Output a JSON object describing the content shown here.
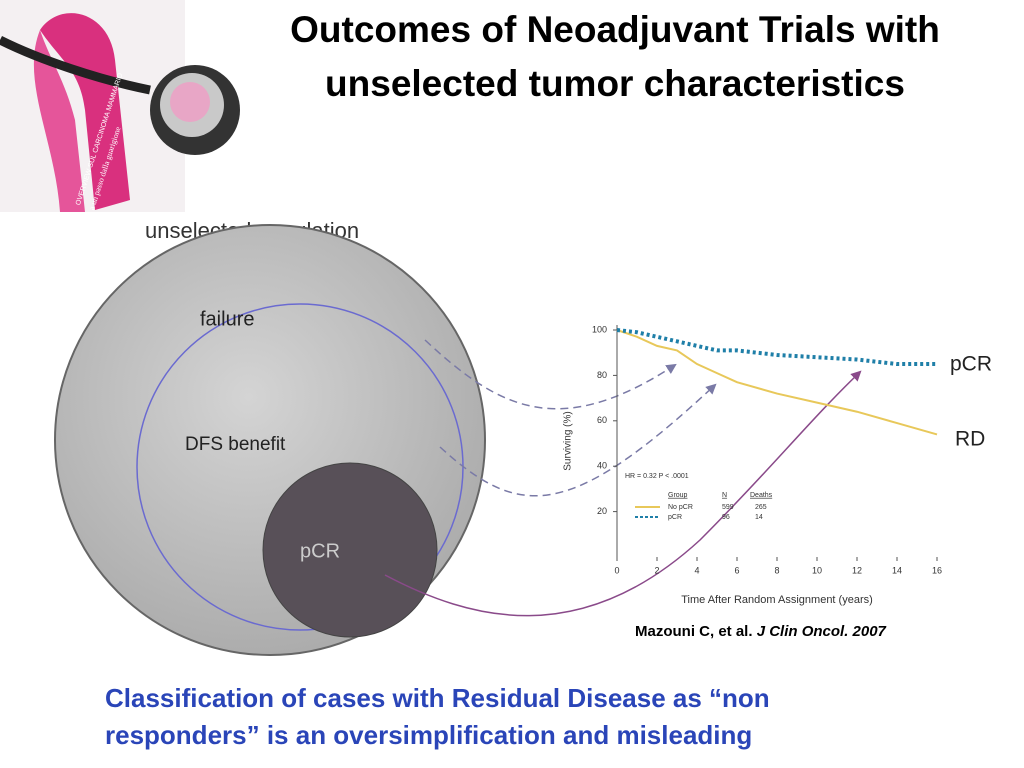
{
  "header": {
    "title_lines": [
      "Outcomes of Neoadjuvant Trials with",
      "unselected tumor characteristics"
    ]
  },
  "logo": {
    "ribbon_text": "OVERVIEW SUL CARCINOMA MAMMARIO",
    "tagline": "a un passo dalla guarigione"
  },
  "diagram": {
    "population": "unselected population",
    "outer": "failure",
    "middle": "DFS benefit",
    "inner": "pCR"
  },
  "chart_data": {
    "type": "line",
    "x_label": "Time After Random Assignment (years)",
    "y_label": "Surviving (%)",
    "x": [
      0,
      1,
      2,
      3,
      4,
      5,
      6,
      8,
      10,
      12,
      14,
      16
    ],
    "series": [
      {
        "name": "No pCR",
        "color": "#e8c85a",
        "n": 599,
        "deaths": 265,
        "values": [
          100,
          97,
          93,
          91,
          85,
          81,
          77,
          72,
          68,
          64,
          59,
          54
        ]
      },
      {
        "name": "pCR",
        "color": "#1f7fa8",
        "n": 96,
        "deaths": 14,
        "values": [
          100,
          99,
          97,
          95,
          93,
          91,
          91,
          89,
          88,
          87,
          85,
          85
        ]
      }
    ],
    "xlim": [
      0,
      16
    ],
    "xticks": [
      0,
      2,
      4,
      6,
      8,
      10,
      12,
      14,
      16
    ],
    "ylim": [
      0,
      100
    ],
    "yticks": [
      20,
      40,
      60,
      80,
      100
    ],
    "legend_headers": [
      "Group",
      "N",
      "Deaths"
    ],
    "stats": "HR = 0.32    P < .0001",
    "annotations": [
      "pCR",
      "RD"
    ]
  },
  "citation": {
    "authors": "Mazouni C, et al.",
    "journal": "J Clin Oncol. 2007"
  },
  "conclusion": {
    "lines": [
      "Classification of cases with Residual Disease as “non",
      "responders” is an oversimplification and misleading"
    ]
  }
}
